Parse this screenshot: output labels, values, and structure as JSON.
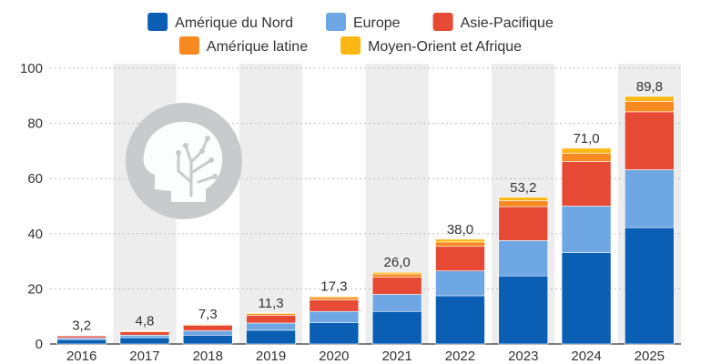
{
  "chart_data": {
    "type": "bar",
    "stacked": true,
    "categories": [
      "2016",
      "2017",
      "2018",
      "2019",
      "2020",
      "2021",
      "2022",
      "2023",
      "2024",
      "2025"
    ],
    "series": [
      {
        "name": "Amérique du Nord",
        "color": "#0a5fb4",
        "values": [
          1.6,
          2.3,
          3.2,
          5.0,
          7.8,
          11.8,
          17.5,
          24.7,
          33.2,
          42.2
        ]
      },
      {
        "name": "Europe",
        "color": "#6fa6e4",
        "values": [
          0.6,
          0.9,
          1.6,
          2.6,
          4.0,
          6.2,
          9.0,
          12.8,
          16.8,
          21.0
        ]
      },
      {
        "name": "Asie-Pacifique",
        "color": "#e64a35",
        "values": [
          0.7,
          1.2,
          1.9,
          2.8,
          4.2,
          6.2,
          8.9,
          12.3,
          16.2,
          21.0
        ]
      },
      {
        "name": "Amérique latine",
        "color": "#f6891f",
        "values": [
          0.2,
          0.3,
          0.4,
          0.6,
          0.9,
          1.2,
          1.6,
          2.2,
          3.0,
          3.8
        ]
      },
      {
        "name": "Moyen-Orient et Afrique",
        "color": "#fbb814",
        "values": [
          0.1,
          0.1,
          0.2,
          0.3,
          0.4,
          0.6,
          1.0,
          1.2,
          1.8,
          1.8
        ]
      }
    ],
    "totals": [
      "3,2",
      "4,8",
      "7,3",
      "11,3",
      "17,3",
      "26,0",
      "38,0",
      "53,2",
      "71,0",
      "89,8"
    ],
    "yticks": [
      "0",
      "20",
      "40",
      "60",
      "80",
      "100"
    ],
    "ylim": [
      0,
      100
    ],
    "grid": true,
    "legend_position": "top",
    "alternating_column_bands": true,
    "icon": "head-circuit-icon"
  }
}
